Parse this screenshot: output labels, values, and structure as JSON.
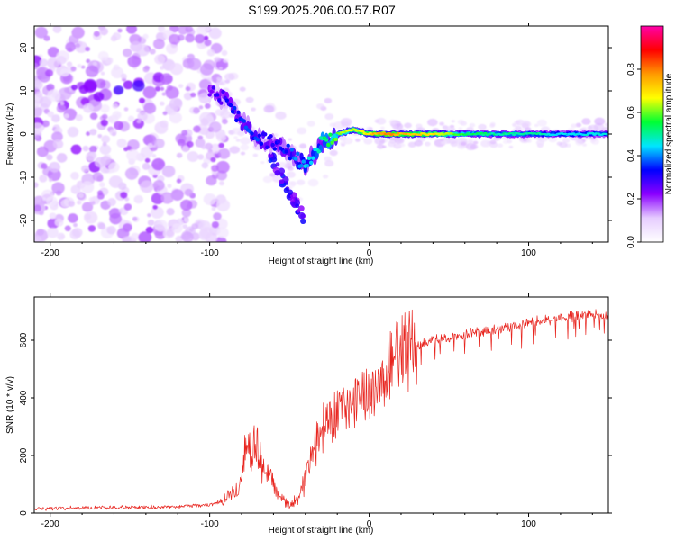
{
  "title": "S199.2025.206.00.57.R07",
  "colors": {
    "snr_line": "#e8251f",
    "background": "#ffffff",
    "axis": "#000000"
  },
  "chart_data": [
    {
      "type": "heatmap",
      "xlabel": "Height of straight line (km)",
      "ylabel": "Frequency (Hz)",
      "xlim": [
        -210,
        150
      ],
      "ylim": [
        -25,
        25
      ],
      "x_ticks": [
        -200,
        -100,
        0,
        100
      ],
      "y_ticks": [
        -20,
        -10,
        0,
        10,
        20
      ],
      "colorbar": {
        "label": "Normalized spectral amplitude",
        "range": [
          0,
          1
        ],
        "ticks": [
          0.0,
          0.2,
          0.4,
          0.6,
          0.8
        ],
        "tick_labels": [
          "0.0",
          "0.2",
          "0.4",
          "0.6",
          "0.8"
        ],
        "colormap": [
          "#ffffff",
          "#e6ccff",
          "#8a00ff",
          "#0000ff",
          "#00e5ff",
          "#00ff33",
          "#ffff00",
          "#ff9900",
          "#ff0000",
          "#ff00aa"
        ]
      },
      "ridge": {
        "x": [
          -100,
          -90,
          -80,
          -70,
          -60,
          -50,
          -45,
          -40,
          -35,
          -30,
          -25,
          -20,
          -10,
          0,
          10,
          20,
          40,
          60,
          80,
          100,
          120,
          150
        ],
        "y": [
          10,
          8,
          3,
          -1,
          -2,
          -4,
          -6,
          -7,
          -5,
          -2,
          -1,
          0,
          1,
          0,
          0,
          0,
          0,
          0,
          0,
          0,
          0,
          0
        ],
        "amplitude": [
          0.25,
          0.3,
          0.35,
          0.35,
          0.3,
          0.35,
          0.4,
          0.45,
          0.45,
          0.5,
          0.55,
          0.6,
          0.65,
          0.7,
          0.8,
          0.75,
          0.7,
          0.55,
          0.5,
          0.5,
          0.45,
          0.45
        ]
      }
    },
    {
      "type": "line",
      "xlabel": "Height of straight line (km)",
      "ylabel": "SNR (10 * v/v)",
      "xlim": [
        -210,
        150
      ],
      "ylim": [
        0,
        750
      ],
      "x_ticks": [
        -200,
        -100,
        0,
        100
      ],
      "y_ticks": [
        0,
        200,
        400,
        600
      ],
      "series": [
        {
          "x": [
            -210,
            -180,
            -150,
            -120,
            -100,
            -90,
            -82,
            -78,
            -74,
            -70,
            -66,
            -62,
            -58,
            -54,
            -50,
            -46,
            -42,
            -38,
            -34,
            -30,
            -25,
            -20,
            -15,
            -10,
            -5,
            0,
            5,
            10,
            15,
            20,
            25,
            30,
            40,
            50,
            60,
            70,
            80,
            90,
            100,
            110,
            120,
            130,
            140,
            150
          ],
          "y": [
            15,
            18,
            20,
            22,
            28,
            45,
            90,
            190,
            240,
            210,
            160,
            120,
            70,
            40,
            30,
            45,
            90,
            170,
            240,
            280,
            320,
            350,
            380,
            400,
            430,
            420,
            450,
            480,
            520,
            550,
            570,
            580,
            600,
            610,
            620,
            630,
            640,
            650,
            660,
            670,
            675,
            685,
            690,
            680
          ]
        }
      ]
    }
  ]
}
